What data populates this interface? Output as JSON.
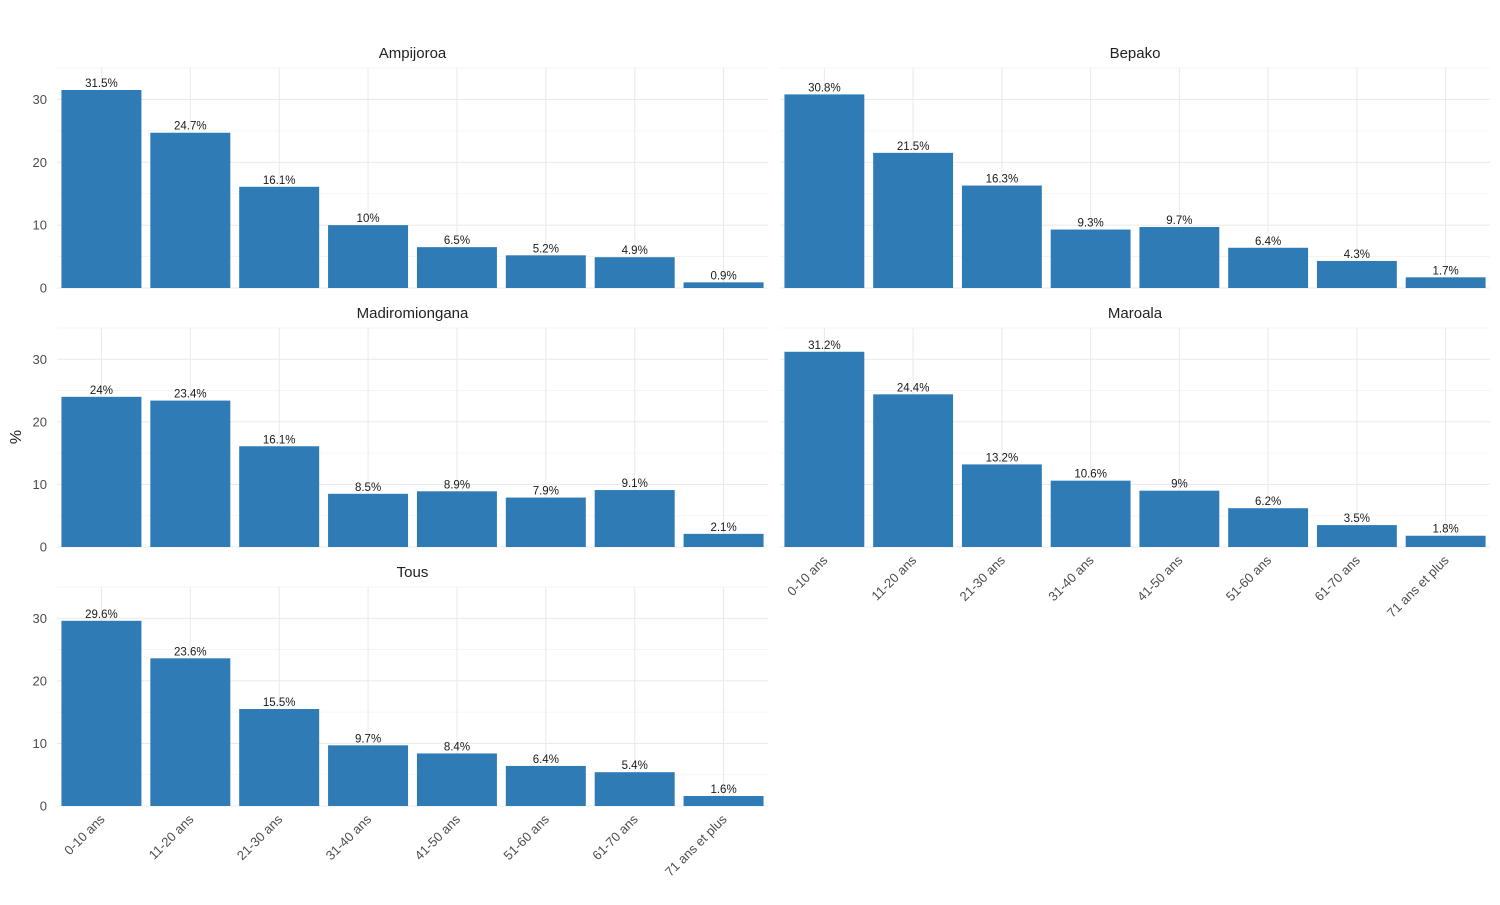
{
  "chart_data": {
    "type": "bar",
    "facet_layout": "2 columns",
    "ylabel": "%",
    "ylim": [
      0,
      35
    ],
    "yticks": [
      0,
      10,
      20,
      30
    ],
    "grid": true,
    "bar_color": "#2e7bb6",
    "value_suffix": "%",
    "categories": [
      "0-10 ans",
      "11-20 ans",
      "21-30 ans",
      "31-40 ans",
      "41-50 ans",
      "51-60 ans",
      "61-70 ans",
      "71 ans et plus"
    ],
    "panels": [
      {
        "title": "Ampijoroa",
        "values": [
          31.5,
          24.7,
          16.1,
          10,
          6.5,
          5.2,
          4.9,
          0.9
        ]
      },
      {
        "title": "Bepako",
        "values": [
          30.8,
          21.5,
          16.3,
          9.3,
          9.7,
          6.4,
          4.3,
          1.7
        ]
      },
      {
        "title": "Madiromiongana",
        "values": [
          24,
          23.4,
          16.1,
          8.5,
          8.9,
          7.9,
          9.1,
          2.1
        ]
      },
      {
        "title": "Maroala",
        "values": [
          31.2,
          24.4,
          13.2,
          10.6,
          9,
          6.2,
          3.5,
          1.8
        ]
      },
      {
        "title": "Tous",
        "values": [
          29.6,
          23.6,
          15.5,
          9.7,
          8.4,
          6.4,
          5.4,
          1.6
        ]
      }
    ]
  }
}
